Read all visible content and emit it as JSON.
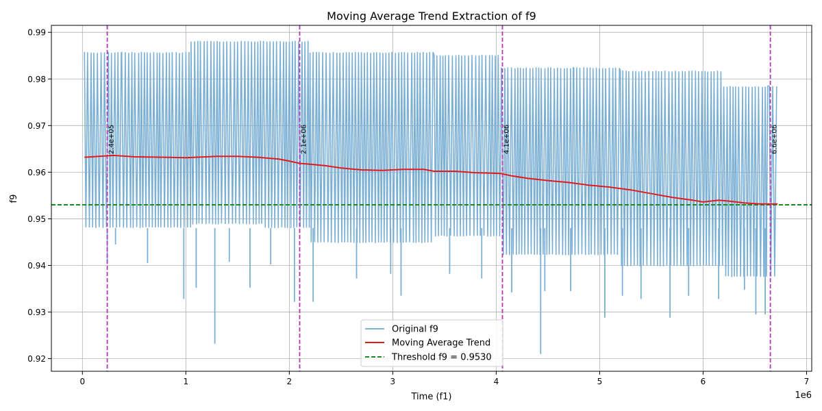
{
  "chart_data": {
    "type": "line",
    "title": "Moving Average Trend Extraction of f9",
    "xlabel": "Time (f1)",
    "ylabel": "f9",
    "x_offset_label": "1e6",
    "xlim": [
      -300000,
      7050000
    ],
    "ylim": [
      0.9173,
      0.9915
    ],
    "x_ticks": [
      0,
      1000000,
      2000000,
      3000000,
      4000000,
      5000000,
      6000000,
      7000000
    ],
    "x_tick_labels": [
      "0",
      "1",
      "2",
      "3",
      "4",
      "5",
      "6",
      "7"
    ],
    "y_ticks": [
      0.92,
      0.93,
      0.94,
      0.95,
      0.96,
      0.97,
      0.98,
      0.99
    ],
    "y_tick_labels": [
      "0.92",
      "0.93",
      "0.94",
      "0.95",
      "0.96",
      "0.97",
      "0.98",
      "0.99"
    ],
    "grid": true,
    "legend_position": "bottom-center",
    "colors": {
      "original": "#7bafd4",
      "trend": "#e31a1c",
      "threshold": "#1a8a1a",
      "markers": "#b23ab2"
    },
    "series": [
      {
        "name": "Original f9",
        "style": "oscillating",
        "segments": [
          {
            "x": [
              20000,
              380000
            ],
            "high": 0.9858,
            "low": 0.948
          },
          {
            "x": [
              380000,
              1050000
            ],
            "high": 0.9858,
            "low": 0.948
          },
          {
            "x": [
              1050000,
              1750000
            ],
            "high": 0.9882,
            "low": 0.9488
          },
          {
            "x": [
              1750000,
              2200000
            ],
            "high": 0.9882,
            "low": 0.948
          },
          {
            "x": [
              2200000,
              3400000
            ],
            "high": 0.9858,
            "low": 0.9448
          },
          {
            "x": [
              3400000,
              4050000
            ],
            "high": 0.9852,
            "low": 0.9462
          },
          {
            "x": [
              4050000,
              4750000
            ],
            "high": 0.9825,
            "low": 0.9422
          },
          {
            "x": [
              4750000,
              5200000
            ],
            "high": 0.9825,
            "low": 0.9422
          },
          {
            "x": [
              5200000,
              6200000
            ],
            "high": 0.9818,
            "low": 0.9398
          },
          {
            "x": [
              6200000,
              6640000
            ],
            "high": 0.9785,
            "low": 0.9375
          },
          {
            "x": [
              6640000,
              6720000
            ],
            "high": 0.9785,
            "low": 0.9375
          }
        ],
        "dips": [
          [
            240000,
            0.9403
          ],
          [
            320000,
            0.9445
          ],
          [
            630000,
            0.9405
          ],
          [
            980000,
            0.9328
          ],
          [
            1100000,
            0.9352
          ],
          [
            1280000,
            0.9232
          ],
          [
            1420000,
            0.9408
          ],
          [
            1620000,
            0.9352
          ],
          [
            1820000,
            0.9402
          ],
          [
            2050000,
            0.9322
          ],
          [
            2230000,
            0.9322
          ],
          [
            2650000,
            0.9372
          ],
          [
            2980000,
            0.9382
          ],
          [
            3080000,
            0.9335
          ],
          [
            3550000,
            0.9382
          ],
          [
            3860000,
            0.9372
          ],
          [
            4150000,
            0.9342
          ],
          [
            4430000,
            0.921
          ],
          [
            4470000,
            0.9345
          ],
          [
            4720000,
            0.9345
          ],
          [
            5050000,
            0.9288
          ],
          [
            5220000,
            0.9335
          ],
          [
            5400000,
            0.9328
          ],
          [
            5680000,
            0.9288
          ],
          [
            5860000,
            0.9335
          ],
          [
            6150000,
            0.9328
          ],
          [
            6400000,
            0.9348
          ],
          [
            6510000,
            0.9295
          ],
          [
            6600000,
            0.9295
          ]
        ]
      },
      {
        "name": "Moving Average Trend",
        "x": [
          20000,
          300000,
          500000,
          800000,
          1000000,
          1300000,
          1500000,
          1700000,
          1900000,
          2000000,
          2100000,
          2200000,
          2350000,
          2500000,
          2700000,
          2900000,
          3100000,
          3300000,
          3400000,
          3600000,
          3800000,
          3950000,
          4050000,
          4150000,
          4300000,
          4500000,
          4700000,
          4900000,
          5100000,
          5300000,
          5500000,
          5700000,
          5900000,
          6000000,
          6150000,
          6250000,
          6400000,
          6550000,
          6720000
        ],
        "values": [
          0.9632,
          0.9636,
          0.9633,
          0.9632,
          0.9631,
          0.9634,
          0.9634,
          0.9632,
          0.9628,
          0.9624,
          0.9619,
          0.9617,
          0.9614,
          0.9609,
          0.9605,
          0.9604,
          0.9606,
          0.9606,
          0.9602,
          0.9602,
          0.9599,
          0.9598,
          0.9597,
          0.9592,
          0.9587,
          0.9582,
          0.9578,
          0.9572,
          0.9568,
          0.9562,
          0.9554,
          0.9546,
          0.954,
          0.9536,
          0.954,
          0.9538,
          0.9534,
          0.9532,
          0.9532
        ]
      },
      {
        "name": "Threshold f9 = 0.9530",
        "value": 0.953
      }
    ],
    "vertical_markers": [
      {
        "x": 240000,
        "label": "2.4e+05"
      },
      {
        "x": 2100000,
        "label": "2.1e+06"
      },
      {
        "x": 4060000,
        "label": "4.1e+06"
      },
      {
        "x": 6650000,
        "label": "6.6e+06"
      }
    ]
  }
}
